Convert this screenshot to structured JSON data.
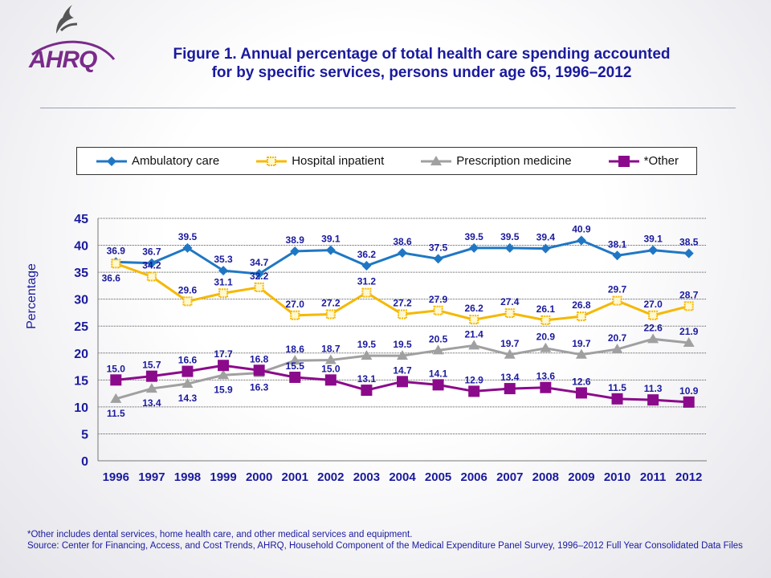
{
  "header": {
    "title_line1": "Figure 1. Annual percentage of total health care spending accounted",
    "title_line2": "for by specific services, persons under age 65, 1996–2012",
    "logo": "AHRQ",
    "seal": "hhs-eagle-icon"
  },
  "footer": {
    "note": "*Other includes dental services, home health care, and other medical services and equipment.",
    "source": "Source: Center for Financing, Access, and Cost Trends, AHRQ, Household Component of the Medical Expenditure Panel Survey,  1996–2012 Full Year Consolidated Data Files"
  },
  "chart_data": {
    "type": "line",
    "title": "",
    "xlabel": "",
    "ylabel": "Percentage",
    "ylim": [
      0,
      45
    ],
    "yticks": [
      "0",
      "5",
      "10",
      "15",
      "20",
      "25",
      "30",
      "35",
      "40",
      "45"
    ],
    "grid": true,
    "legend_position": "top",
    "x": [
      "1996",
      "1997",
      "1998",
      "1999",
      "2000",
      "2001",
      "2002",
      "2003",
      "2004",
      "2005",
      "2006",
      "2007",
      "2008",
      "2009",
      "2010",
      "2011",
      "2012"
    ],
    "series": [
      {
        "name": "Ambulatory care",
        "color": "#1f77c4",
        "marker": "diamond",
        "values": [
          36.9,
          36.7,
          39.5,
          35.3,
          34.7,
          38.9,
          39.1,
          36.2,
          38.6,
          37.5,
          39.5,
          39.5,
          39.4,
          40.9,
          38.1,
          39.1,
          38.5
        ]
      },
      {
        "name": "Hospital inpatient",
        "color": "#f5b800",
        "marker": "square-open",
        "values": [
          36.6,
          34.2,
          29.6,
          31.1,
          32.2,
          27.0,
          27.2,
          31.2,
          27.2,
          27.9,
          26.2,
          27.4,
          26.1,
          26.8,
          29.7,
          27.0,
          28.7
        ]
      },
      {
        "name": "Prescription medicine",
        "color": "#a0a0a0",
        "marker": "triangle",
        "values": [
          11.5,
          13.4,
          14.3,
          15.9,
          16.3,
          18.6,
          18.7,
          19.5,
          19.5,
          20.5,
          21.4,
          19.7,
          20.9,
          19.7,
          20.7,
          22.6,
          21.9
        ]
      },
      {
        "name": "*Other",
        "color": "#8b0a8b",
        "marker": "square",
        "values": [
          15.0,
          15.7,
          16.6,
          17.7,
          16.8,
          15.5,
          15.0,
          13.1,
          14.7,
          14.1,
          12.9,
          13.4,
          13.6,
          12.6,
          11.5,
          11.3,
          10.9
        ]
      }
    ]
  }
}
